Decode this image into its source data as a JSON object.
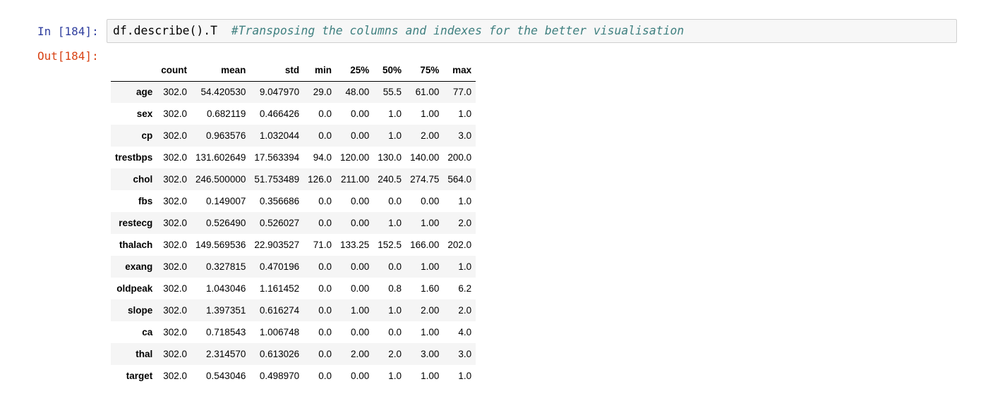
{
  "cell": {
    "in_prompt": "In [184]:",
    "out_prompt": "Out[184]:",
    "code": "df.describe().T",
    "comment": "#Transposing the columns and indexes for the better visualisation"
  },
  "table": {
    "columns": [
      "count",
      "mean",
      "std",
      "min",
      "25%",
      "50%",
      "75%",
      "max"
    ],
    "rows": [
      {
        "index": "age",
        "values": [
          "302.0",
          "54.420530",
          "9.047970",
          "29.0",
          "48.00",
          "55.5",
          "61.00",
          "77.0"
        ]
      },
      {
        "index": "sex",
        "values": [
          "302.0",
          "0.682119",
          "0.466426",
          "0.0",
          "0.00",
          "1.0",
          "1.00",
          "1.0"
        ]
      },
      {
        "index": "cp",
        "values": [
          "302.0",
          "0.963576",
          "1.032044",
          "0.0",
          "0.00",
          "1.0",
          "2.00",
          "3.0"
        ]
      },
      {
        "index": "trestbps",
        "values": [
          "302.0",
          "131.602649",
          "17.563394",
          "94.0",
          "120.00",
          "130.0",
          "140.00",
          "200.0"
        ]
      },
      {
        "index": "chol",
        "values": [
          "302.0",
          "246.500000",
          "51.753489",
          "126.0",
          "211.00",
          "240.5",
          "274.75",
          "564.0"
        ]
      },
      {
        "index": "fbs",
        "values": [
          "302.0",
          "0.149007",
          "0.356686",
          "0.0",
          "0.00",
          "0.0",
          "0.00",
          "1.0"
        ]
      },
      {
        "index": "restecg",
        "values": [
          "302.0",
          "0.526490",
          "0.526027",
          "0.0",
          "0.00",
          "1.0",
          "1.00",
          "2.0"
        ]
      },
      {
        "index": "thalach",
        "values": [
          "302.0",
          "149.569536",
          "22.903527",
          "71.0",
          "133.25",
          "152.5",
          "166.00",
          "202.0"
        ]
      },
      {
        "index": "exang",
        "values": [
          "302.0",
          "0.327815",
          "0.470196",
          "0.0",
          "0.00",
          "0.0",
          "1.00",
          "1.0"
        ]
      },
      {
        "index": "oldpeak",
        "values": [
          "302.0",
          "1.043046",
          "1.161452",
          "0.0",
          "0.00",
          "0.8",
          "1.60",
          "6.2"
        ]
      },
      {
        "index": "slope",
        "values": [
          "302.0",
          "1.397351",
          "0.616274",
          "0.0",
          "1.00",
          "1.0",
          "2.00",
          "2.0"
        ]
      },
      {
        "index": "ca",
        "values": [
          "302.0",
          "0.718543",
          "1.006748",
          "0.0",
          "0.00",
          "0.0",
          "1.00",
          "4.0"
        ]
      },
      {
        "index": "thal",
        "values": [
          "302.0",
          "2.314570",
          "0.613026",
          "0.0",
          "2.00",
          "2.0",
          "3.00",
          "3.0"
        ]
      },
      {
        "index": "target",
        "values": [
          "302.0",
          "0.543046",
          "0.498970",
          "0.0",
          "0.00",
          "1.0",
          "1.00",
          "1.0"
        ]
      }
    ]
  }
}
